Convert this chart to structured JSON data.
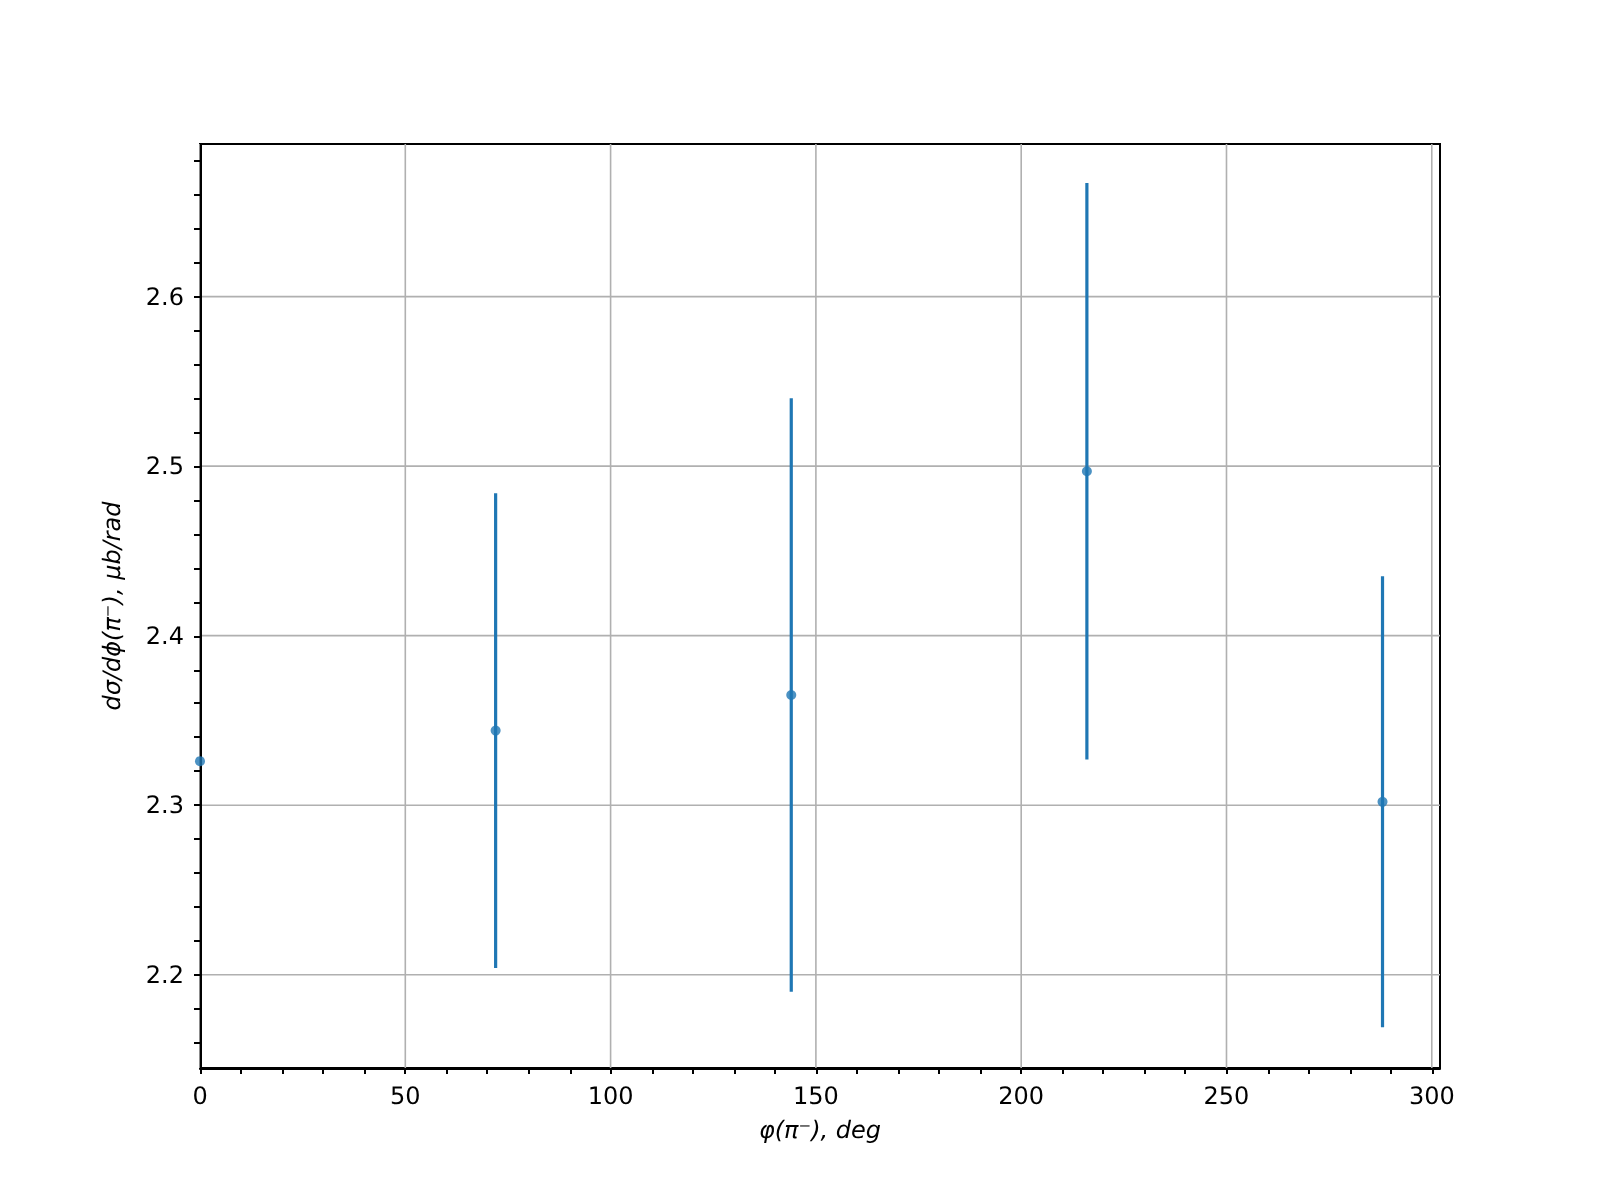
{
  "chart_data": {
    "type": "scatter",
    "xlabel": "φ(π⁻), deg",
    "ylabel": "dσ/dϕ(π⁻), μb/rad",
    "x": [
      0,
      72,
      144,
      216,
      288
    ],
    "series": [
      {
        "color": "#1f77b4",
        "values": [
          2.326,
          2.344,
          2.365,
          2.497,
          2.302
        ],
        "errors": [
          null,
          0.14,
          0.175,
          0.17,
          0.133
        ]
      }
    ],
    "xlim": [
      0,
      302
    ],
    "xticks": [
      0,
      {
        "value": 10,
        "label": null
      },
      {
        "value": 20,
        "label": null
      },
      {
        "value": 30,
        "label": null
      },
      {
        "value": 40,
        "label": null
      },
      50,
      {
        "value": 60,
        "label": null
      },
      {
        "value": 70,
        "label": null
      },
      {
        "value": 80,
        "label": null
      },
      {
        "value": 90,
        "label": null
      },
      100,
      {
        "value": 110,
        "label": null
      },
      {
        "value": 120,
        "label": null
      },
      {
        "value": 130,
        "label": null
      },
      {
        "value": 140,
        "label": null
      },
      150,
      {
        "value": 160,
        "label": null
      },
      {
        "value": 170,
        "label": null
      },
      {
        "value": 180,
        "label": null
      },
      {
        "value": 190,
        "label": null
      },
      200,
      {
        "value": 210,
        "label": null
      },
      {
        "value": 220,
        "label": null
      },
      {
        "value": 230,
        "label": null
      },
      {
        "value": 240,
        "label": null
      },
      250,
      {
        "value": 260,
        "label": null
      },
      {
        "value": 270,
        "label": null
      },
      {
        "value": 280,
        "label": null
      },
      {
        "value": 290,
        "label": null
      },
      300
    ],
    "ylim": [
      2.145,
      2.69
    ],
    "yticks": [
      {
        "value": 2.16,
        "label": null
      },
      {
        "value": 2.18,
        "label": null
      },
      {
        "value": 2.2,
        "label": "2.2"
      },
      {
        "value": 2.22,
        "label": null
      },
      {
        "value": 2.24,
        "label": null
      },
      {
        "value": 2.26,
        "label": null
      },
      {
        "value": 2.28,
        "label": null
      },
      {
        "value": 2.3,
        "label": "2.3"
      },
      {
        "value": 2.32,
        "label": null
      },
      {
        "value": 2.34,
        "label": null
      },
      {
        "value": 2.36,
        "label": null
      },
      {
        "value": 2.38,
        "label": null
      },
      {
        "value": 2.4,
        "label": "2.4"
      },
      {
        "value": 2.42,
        "label": null
      },
      {
        "value": 2.44,
        "label": null
      },
      {
        "value": 2.46,
        "label": null
      },
      {
        "value": 2.48,
        "label": null
      },
      {
        "value": 2.5,
        "label": "2.5"
      },
      {
        "value": 2.52,
        "label": null
      },
      {
        "value": 2.54,
        "label": null
      },
      {
        "value": 2.56,
        "label": null
      },
      {
        "value": 2.58,
        "label": null
      },
      {
        "value": 2.6,
        "label": "2.6"
      },
      {
        "value": 2.62,
        "label": null
      },
      {
        "value": 2.64,
        "label": null
      },
      {
        "value": 2.66,
        "label": null
      },
      {
        "value": 2.68,
        "label": null
      }
    ],
    "grid": true,
    "marker": "circle"
  }
}
